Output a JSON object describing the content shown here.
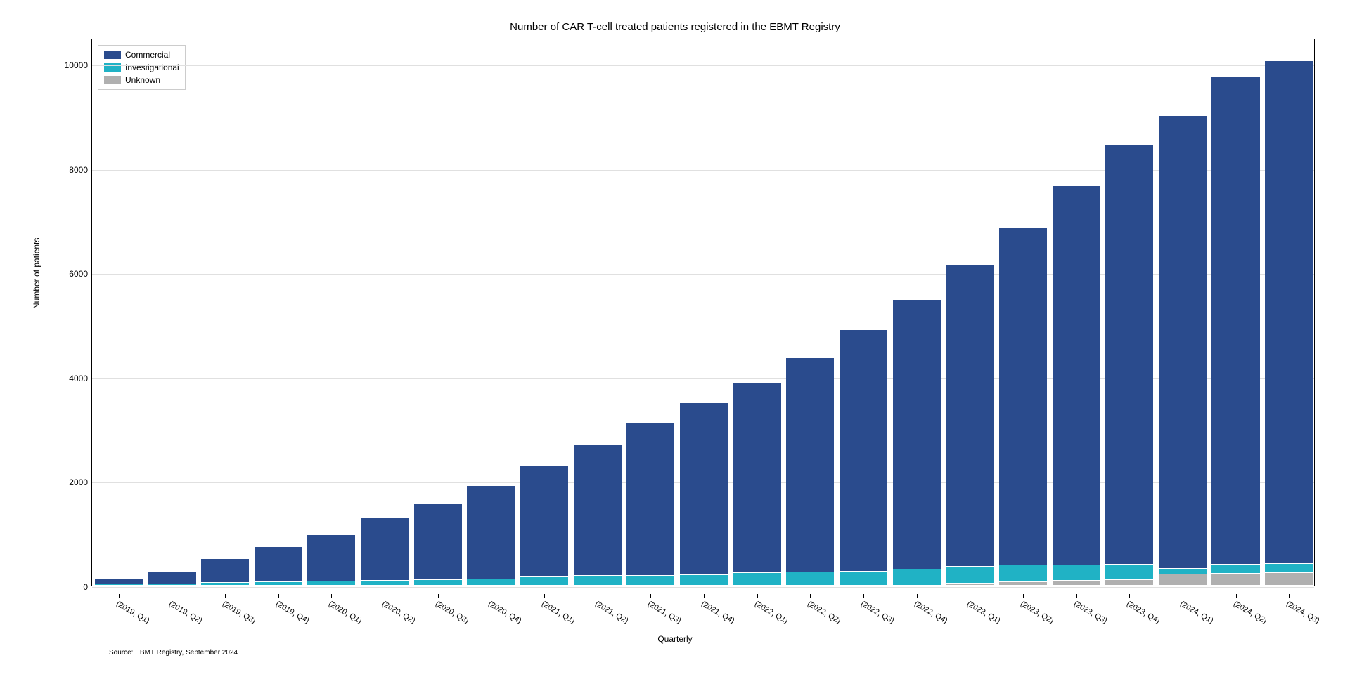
{
  "chart": {
    "type": "stacked-bar",
    "title": "Number of CAR T-cell treated patients registered in the EBMT Registry",
    "xlabel": "Quarterly",
    "ylabel": "Number of patients",
    "source_text": "Source: EBMT Registry, September 2024",
    "background_color": "#ffffff",
    "grid_color": "#e0e0e0",
    "border_color": "#000000",
    "title_fontsize": 15,
    "label_fontsize": 12,
    "tick_fontsize": 12,
    "xtick_fontsize": 11,
    "xtick_rotation": 30,
    "ylim": [
      0,
      10500
    ],
    "yticks": [
      0,
      2000,
      4000,
      6000,
      8000,
      10000
    ],
    "bar_width": 0.9,
    "categories": [
      "(2019, Q1)",
      "(2019, Q2)",
      "(2019, Q3)",
      "(2019, Q4)",
      "(2020, Q1)",
      "(2020, Q2)",
      "(2020, Q3)",
      "(2020, Q4)",
      "(2021, Q1)",
      "(2021, Q2)",
      "(2021, Q3)",
      "(2021, Q4)",
      "(2022, Q1)",
      "(2022, Q2)",
      "(2022, Q3)",
      "(2022, Q4)",
      "(2023, Q1)",
      "(2023, Q2)",
      "(2023, Q3)",
      "(2023, Q4)",
      "(2024, Q1)",
      "(2024, Q2)",
      "(2024, Q3)"
    ],
    "series": [
      {
        "name": "Unknown",
        "color": "#b0b0b0",
        "values": [
          0,
          0,
          0,
          0,
          0,
          0,
          0,
          0,
          0,
          0,
          0,
          0,
          0,
          0,
          0,
          0,
          30,
          60,
          80,
          100,
          200,
          220,
          230
        ]
      },
      {
        "name": "Investigational",
        "color": "#20b2c5",
        "values": [
          10,
          20,
          40,
          50,
          70,
          80,
          90,
          110,
          150,
          170,
          180,
          190,
          230,
          240,
          260,
          300,
          310,
          300,
          290,
          280,
          100,
          160,
          160
        ]
      },
      {
        "name": "Commercial",
        "color": "#2a4b8d",
        "values": [
          80,
          220,
          450,
          660,
          870,
          1180,
          1450,
          1780,
          2130,
          2490,
          2900,
          3280,
          3640,
          4090,
          4610,
          5150,
          5770,
          6470,
          7250,
          8040,
          8660,
          9320,
          9620
        ]
      }
    ],
    "legend": {
      "position": "upper-left",
      "order": [
        "Commercial",
        "Investigational",
        "Unknown"
      ]
    }
  }
}
